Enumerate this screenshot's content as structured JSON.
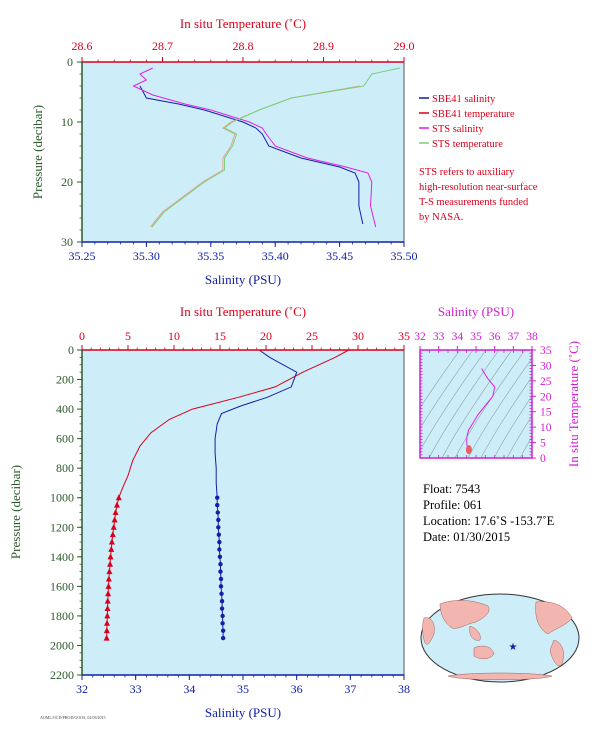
{
  "colors": {
    "plot_bg": "#cdeef8",
    "red": "#d8001c",
    "blue": "#1020a8",
    "magenta": "#e020e0",
    "green": "#7ccf7c",
    "axis_green": "#2a5a2a",
    "salmon": "#e8a090"
  },
  "top_panel": {
    "top_axis_title": "In situ Temperature (˚C)",
    "bottom_axis_title": "Salinity (PSU)",
    "left_axis_title": "Pressure (decibar)",
    "temp_ticks": [
      "28.6",
      "28.7",
      "28.8",
      "28.9",
      "29.0"
    ],
    "sal_ticks": [
      "35.25",
      "35.30",
      "35.35",
      "35.40",
      "35.45",
      "35.50"
    ],
    "pres_ticks": [
      "0",
      "10",
      "20",
      "30"
    ],
    "legend": [
      {
        "label": "SBE41 salinity",
        "color": "#1020a8"
      },
      {
        "label": "SBE41 temperature",
        "color": "#d8001c"
      },
      {
        "label": "STS salinity",
        "color": "#e020e0"
      },
      {
        "label": "STS temperature",
        "color": "#7ccf7c"
      }
    ],
    "note": [
      "STS refers to auxiliary",
      "high-resolution near-surface",
      "T-S measurements funded",
      "by NASA."
    ]
  },
  "main_panel": {
    "top_axis_title": "In situ Temperature (˚C)",
    "bottom_axis_title": "Salinity (PSU)",
    "left_axis_title": "Pressure (decibar)",
    "temp_ticks": [
      "0",
      "5",
      "10",
      "15",
      "20",
      "25",
      "30",
      "35"
    ],
    "sal_ticks": [
      "32",
      "33",
      "34",
      "35",
      "36",
      "37",
      "38"
    ],
    "pres_ticks": [
      "0",
      "200",
      "400",
      "600",
      "800",
      "1000",
      "1200",
      "1400",
      "1600",
      "1800",
      "2000",
      "2200"
    ]
  },
  "ts_panel": {
    "top_axis_title": "Salinity (PSU)",
    "right_axis_title": "In situ Temperature (˚C)",
    "sal_ticks": [
      "32",
      "33",
      "34",
      "35",
      "36",
      "37",
      "38"
    ],
    "temp_ticks": [
      "0",
      "5",
      "10",
      "15",
      "20",
      "25",
      "30",
      "35"
    ]
  },
  "info": {
    "float": "Float:  7543",
    "profile": "Profile:  061",
    "location": "Location:  17.6˚S  -153.7˚E",
    "date": "Date:  01/30/2015"
  },
  "footer_code": "AOML/OCD/PHOD/GOOS, 02/03/2015",
  "chart_data": [
    {
      "type": "line",
      "title": "",
      "x_label_bottom": "Salinity (PSU)",
      "x_label_top": "In situ Temperature (˚C)",
      "ylabel": "Pressure (decibar)",
      "salinity_range": [
        35.25,
        35.5
      ],
      "temperature_range": [
        28.6,
        29.0
      ],
      "pressure_range": [
        30,
        0
      ],
      "series": [
        {
          "name": "SBE41 salinity",
          "axis": "salinity",
          "points": [
            [
              35.295,
              4
            ],
            [
              35.3,
              6
            ],
            [
              35.325,
              7
            ],
            [
              35.345,
              8
            ],
            [
              35.36,
              9
            ],
            [
              35.375,
              10
            ],
            [
              35.385,
              11
            ],
            [
              35.39,
              12
            ],
            [
              35.395,
              14
            ],
            [
              35.42,
              16
            ],
            [
              35.45,
              17.5
            ],
            [
              35.462,
              18.5
            ],
            [
              35.465,
              20
            ],
            [
              35.465,
              24
            ],
            [
              35.468,
              27
            ]
          ]
        },
        {
          "name": "SBE41 temperature",
          "axis": "temperature",
          "points": [
            [
              28.945,
              4
            ],
            [
              28.86,
              6
            ],
            [
              28.82,
              8
            ],
            [
              28.785,
              10
            ],
            [
              28.775,
              11
            ],
            [
              28.79,
              12
            ],
            [
              28.785,
              14
            ],
            [
              28.775,
              16
            ],
            [
              28.775,
              18
            ],
            [
              28.75,
              20
            ],
            [
              28.72,
              23
            ],
            [
              28.7,
              25
            ],
            [
              28.685,
              27.5
            ]
          ]
        },
        {
          "name": "STS salinity",
          "axis": "salinity",
          "points": [
            [
              35.305,
              1
            ],
            [
              35.295,
              2
            ],
            [
              35.3,
              3
            ],
            [
              35.29,
              4
            ],
            [
              35.305,
              5.5
            ],
            [
              35.33,
              7
            ],
            [
              35.35,
              8
            ],
            [
              35.365,
              9
            ],
            [
              35.38,
              10
            ],
            [
              35.39,
              11
            ],
            [
              35.393,
              12
            ],
            [
              35.4,
              14
            ],
            [
              35.425,
              16
            ],
            [
              35.455,
              17.5
            ],
            [
              35.472,
              18.5
            ],
            [
              35.475,
              20
            ],
            [
              35.474,
              24
            ],
            [
              35.478,
              27.5
            ]
          ]
        },
        {
          "name": "STS temperature",
          "axis": "temperature",
          "points": [
            [
              28.995,
              1
            ],
            [
              28.96,
              2
            ],
            [
              28.955,
              3
            ],
            [
              28.95,
              4
            ],
            [
              28.86,
              6
            ],
            [
              28.82,
              8
            ],
            [
              28.787,
              10
            ],
            [
              28.777,
              11
            ],
            [
              28.792,
              12
            ],
            [
              28.787,
              14
            ],
            [
              28.777,
              16
            ],
            [
              28.777,
              18
            ],
            [
              28.752,
              20
            ],
            [
              28.722,
              23
            ],
            [
              28.702,
              25
            ],
            [
              28.687,
              27.5
            ]
          ]
        }
      ]
    },
    {
      "type": "line",
      "title": "",
      "x_label_bottom": "Salinity (PSU)",
      "x_label_top": "In situ Temperature (˚C)",
      "ylabel": "Pressure (decibar)",
      "salinity_range": [
        32,
        38
      ],
      "temperature_range": [
        0,
        35
      ],
      "pressure_range": [
        2200,
        0
      ],
      "series": [
        {
          "name": "",
          "axis": "temperature",
          "color": "#d8001c",
          "points": [
            [
              29,
              0
            ],
            [
              27.5,
              50
            ],
            [
              24,
              150
            ],
            [
              21,
              250
            ],
            [
              17,
              320
            ],
            [
              12,
              400
            ],
            [
              9.5,
              470
            ],
            [
              7.5,
              560
            ],
            [
              6.3,
              650
            ],
            [
              5.5,
              750
            ],
            [
              5,
              850
            ],
            [
              4.3,
              950
            ],
            [
              4,
              1000
            ]
          ]
        },
        {
          "name": "",
          "axis": "salinity",
          "color": "#1020a8",
          "points": [
            [
              35.3,
              0
            ],
            [
              35.5,
              50
            ],
            [
              36.0,
              150
            ],
            [
              35.9,
              250
            ],
            [
              35.45,
              320
            ],
            [
              34.95,
              380
            ],
            [
              34.6,
              430
            ],
            [
              34.52,
              500
            ],
            [
              34.48,
              600
            ],
            [
              34.48,
              700
            ],
            [
              34.5,
              800
            ],
            [
              34.5,
              900
            ],
            [
              34.52,
              1000
            ]
          ]
        },
        {
          "name": "",
          "axis": "temperature",
          "color": "#d8001c",
          "marker": "triangle",
          "points": [
            [
              4.0,
              1000
            ],
            [
              3.8,
              1050
            ],
            [
              3.65,
              1100
            ],
            [
              3.55,
              1150
            ],
            [
              3.45,
              1200
            ],
            [
              3.35,
              1250
            ],
            [
              3.25,
              1300
            ],
            [
              3.18,
              1350
            ],
            [
              3.1,
              1400
            ],
            [
              3.05,
              1450
            ],
            [
              2.98,
              1500
            ],
            [
              2.92,
              1550
            ],
            [
              2.88,
              1600
            ],
            [
              2.84,
              1650
            ],
            [
              2.8,
              1700
            ],
            [
              2.78,
              1750
            ],
            [
              2.75,
              1800
            ],
            [
              2.72,
              1850
            ],
            [
              2.7,
              1900
            ],
            [
              2.68,
              1950
            ]
          ]
        },
        {
          "name": "",
          "axis": "salinity",
          "color": "#1020a8",
          "marker": "circle",
          "points": [
            [
              34.52,
              1000
            ],
            [
              34.52,
              1050
            ],
            [
              34.53,
              1100
            ],
            [
              34.54,
              1150
            ],
            [
              34.54,
              1200
            ],
            [
              34.55,
              1250
            ],
            [
              34.56,
              1300
            ],
            [
              34.56,
              1350
            ],
            [
              34.57,
              1400
            ],
            [
              34.58,
              1450
            ],
            [
              34.58,
              1500
            ],
            [
              34.59,
              1550
            ],
            [
              34.59,
              1600
            ],
            [
              34.6,
              1650
            ],
            [
              34.61,
              1700
            ],
            [
              34.61,
              1750
            ],
            [
              34.62,
              1800
            ],
            [
              34.62,
              1850
            ],
            [
              34.63,
              1900
            ],
            [
              34.63,
              1950
            ]
          ]
        }
      ]
    },
    {
      "type": "scatter",
      "title": "",
      "xlabel": "Salinity (PSU)",
      "ylabel": "In situ Temperature (˚C)",
      "xlim": [
        32,
        38
      ],
      "ylim": [
        0,
        35
      ],
      "series": [
        {
          "name": "",
          "color": "#e020e0",
          "points": [
            [
              35.3,
              29
            ],
            [
              35.6,
              26
            ],
            [
              36.0,
              23
            ],
            [
              35.9,
              20
            ],
            [
              35.5,
              17
            ],
            [
              35.1,
              14
            ],
            [
              34.8,
              11
            ],
            [
              34.6,
              9
            ],
            [
              34.52,
              7
            ],
            [
              34.5,
              5.5
            ],
            [
              34.52,
              4
            ],
            [
              34.57,
              3.2
            ],
            [
              34.62,
              2.7
            ]
          ]
        }
      ]
    }
  ]
}
